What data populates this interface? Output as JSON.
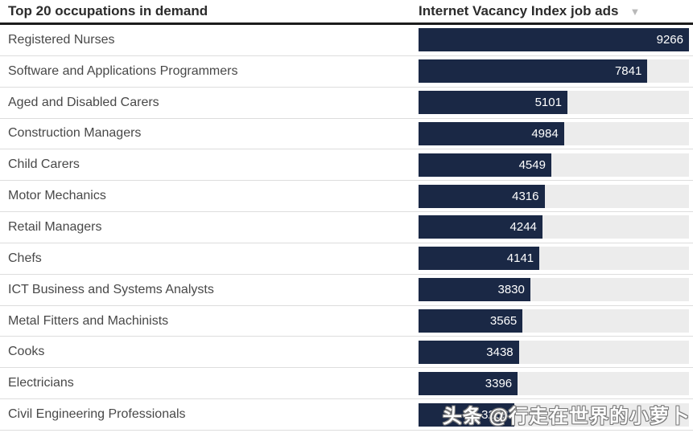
{
  "header": {
    "left_title": "Top 20 occupations in demand",
    "right_title": "Internet Vacancy Index job ads",
    "sort_icon_glyph": "▼"
  },
  "chart_data": {
    "type": "bar",
    "orientation": "horizontal",
    "title": "Top 20 occupations in demand",
    "value_column_label": "Internet Vacancy Index job ads",
    "sort_order": "descending",
    "xlim": [
      0,
      9266
    ],
    "grid": false,
    "legend": "none",
    "bar_color": "#1a2845",
    "track_color": "#ececec",
    "categories": [
      "Registered Nurses",
      "Software and Applications Programmers",
      "Aged and Disabled Carers",
      "Construction Managers",
      "Child Carers",
      "Motor Mechanics",
      "Retail Managers",
      "Chefs",
      "ICT Business and Systems Analysts",
      "Metal Fitters and Machinists",
      "Cooks",
      "Electricians",
      "Civil Engineering Professionals"
    ],
    "values": [
      9266,
      7841,
      5101,
      4984,
      4549,
      4316,
      4244,
      4141,
      3830,
      3565,
      3438,
      3396,
      3268
    ]
  },
  "colors": {
    "bar": "#1a2845",
    "bar_track": "#ececec",
    "header_border": "#1c1c1c",
    "row_separator": "#dddddd",
    "header_text": "#2b2b2b",
    "label_text": "#484848",
    "value_text": "#ffffff",
    "sort_icon": "#b9b9b9"
  },
  "watermark": {
    "text": "头条 @行走在世界的小萝卜"
  }
}
